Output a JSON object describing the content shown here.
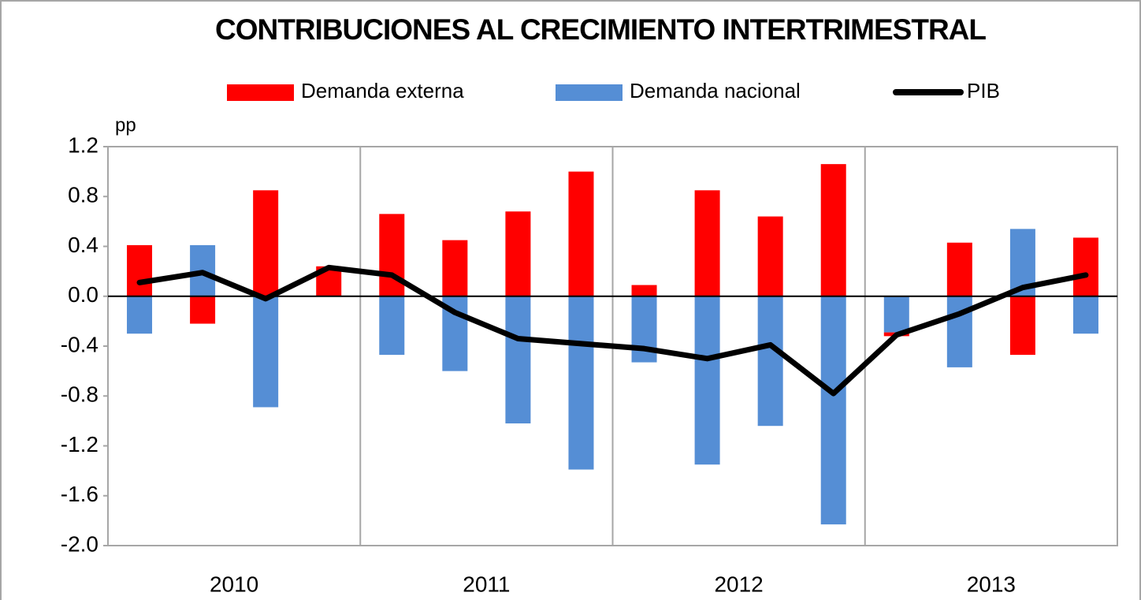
{
  "chart_data": {
    "type": "bar",
    "title": "CONTRIBUCIONES AL CRECIMIENTO INTERTRIMESTRAL",
    "y_unit": "pp",
    "categories": [
      null,
      null,
      null,
      null,
      null,
      null,
      null,
      null,
      null,
      null,
      null,
      null,
      null,
      null,
      null,
      null
    ],
    "year_labels": [
      "2010",
      "2011",
      "2012",
      "2013"
    ],
    "series": [
      {
        "name": "Demanda externa",
        "color": "#ff0000",
        "kind": "bar",
        "values": [
          0.41,
          -0.22,
          0.85,
          0.24,
          0.66,
          0.45,
          0.68,
          1.0,
          0.09,
          0.85,
          0.64,
          1.06,
          -0.03,
          0.43,
          -0.47,
          0.47
        ]
      },
      {
        "name": "Demanda nacional",
        "color": "#558ed5",
        "kind": "bar",
        "values": [
          -0.3,
          0.41,
          -0.89,
          0,
          -0.47,
          -0.6,
          -1.02,
          -1.39,
          -0.53,
          -1.35,
          -1.04,
          -1.83,
          -0.29,
          -0.57,
          0.54,
          -0.3
        ]
      },
      {
        "name": "PIB",
        "color": "#000000",
        "kind": "line",
        "values": [
          0.11,
          0.19,
          -0.02,
          0.23,
          0.17,
          -0.13,
          -0.34,
          -0.38,
          -0.42,
          -0.5,
          -0.39,
          -0.78,
          -0.31,
          -0.14,
          0.07,
          0.17
        ]
      }
    ],
    "ylim": [
      -2.0,
      1.2
    ],
    "yticks": [
      {
        "value": -2.0,
        "label": "-2.0"
      },
      -1.6,
      -1.2,
      -0.8,
      -0.4,
      {
        "value": 0,
        "label": "0.0"
      },
      0.4,
      0.8,
      1.2
    ]
  }
}
